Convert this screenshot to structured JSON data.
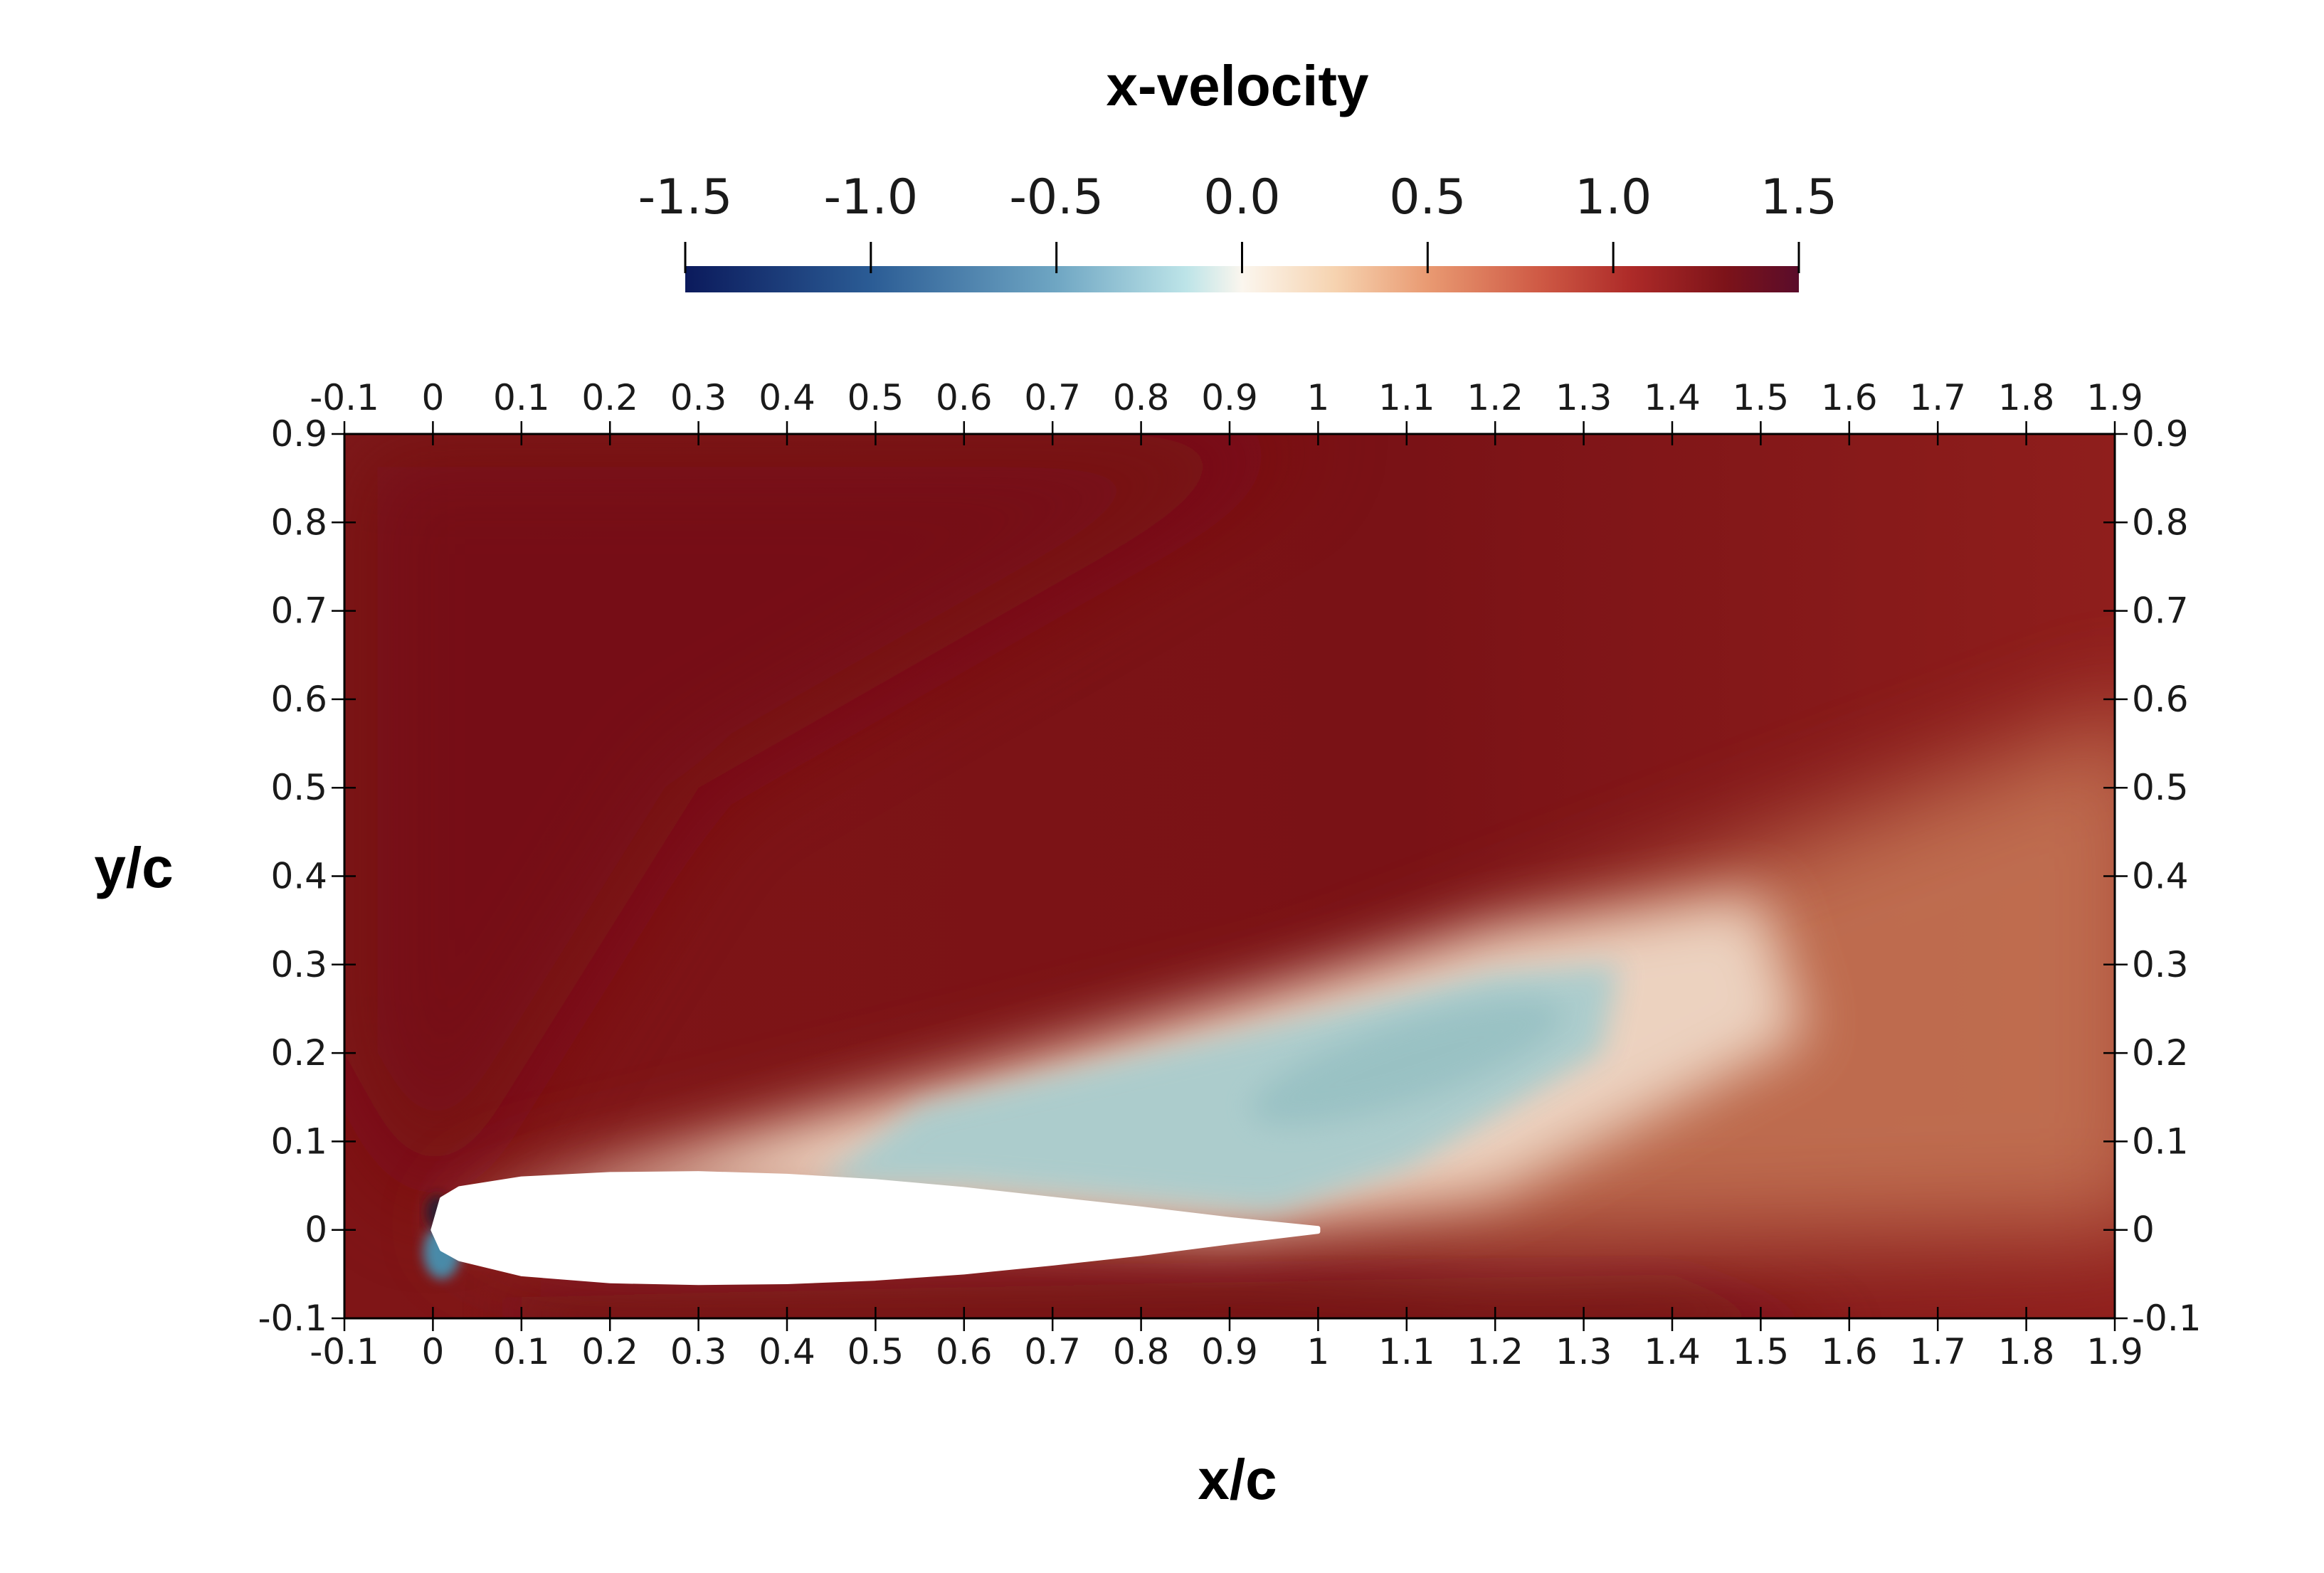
{
  "chart_data": {
    "type": "heatmap",
    "title": "x-velocity",
    "xlabel": "x/c",
    "ylabel": "y/c",
    "xlim": [
      -0.1,
      1.9
    ],
    "ylim": [
      -0.1,
      0.9
    ],
    "x_ticks": [
      {
        "value": -0.1,
        "label": "-0.1"
      },
      {
        "value": 0,
        "label": "0"
      },
      {
        "value": 0.1,
        "label": "0.1"
      },
      {
        "value": 0.2,
        "label": "0.2"
      },
      {
        "value": 0.3,
        "label": "0.3"
      },
      {
        "value": 0.4,
        "label": "0.4"
      },
      {
        "value": 0.5,
        "label": "0.5"
      },
      {
        "value": 0.6,
        "label": "0.6"
      },
      {
        "value": 0.7,
        "label": "0.7"
      },
      {
        "value": 0.8,
        "label": "0.8"
      },
      {
        "value": 0.9,
        "label": "0.9"
      },
      {
        "value": 1,
        "label": "1"
      },
      {
        "value": 1.1,
        "label": "1.1"
      },
      {
        "value": 1.2,
        "label": "1.2"
      },
      {
        "value": 1.3,
        "label": "1.3"
      },
      {
        "value": 1.4,
        "label": "1.4"
      },
      {
        "value": 1.5,
        "label": "1.5"
      },
      {
        "value": 1.6,
        "label": "1.6"
      },
      {
        "value": 1.7,
        "label": "1.7"
      },
      {
        "value": 1.8,
        "label": "1.8"
      },
      {
        "value": 1.9,
        "label": "1.9"
      }
    ],
    "y_ticks": [
      {
        "value": -0.1,
        "label": "-0.1"
      },
      {
        "value": 0,
        "label": "0"
      },
      {
        "value": 0.1,
        "label": "0.1"
      },
      {
        "value": 0.2,
        "label": "0.2"
      },
      {
        "value": 0.3,
        "label": "0.3"
      },
      {
        "value": 0.4,
        "label": "0.4"
      },
      {
        "value": 0.5,
        "label": "0.5"
      },
      {
        "value": 0.6,
        "label": "0.6"
      },
      {
        "value": 0.7,
        "label": "0.7"
      },
      {
        "value": 0.8,
        "label": "0.8"
      },
      {
        "value": 0.9,
        "label": "0.9"
      }
    ],
    "colorbar": {
      "range": [
        -1.5,
        1.5
      ],
      "ticks": [
        {
          "value": -1.5,
          "label": "-1.5"
        },
        {
          "value": -1.0,
          "label": "-1.0"
        },
        {
          "value": -0.5,
          "label": "-0.5"
        },
        {
          "value": 0.0,
          "label": "0.0"
        },
        {
          "value": 0.5,
          "label": "0.5"
        },
        {
          "value": 1.0,
          "label": "1.0"
        },
        {
          "value": 1.5,
          "label": "1.5"
        }
      ],
      "colormap": [
        {
          "value": -1.5,
          "color": "#0b1a5c"
        },
        {
          "value": -1.0,
          "color": "#2b5c95"
        },
        {
          "value": -0.5,
          "color": "#6fa6c3"
        },
        {
          "value": -0.15,
          "color": "#bde4e8"
        },
        {
          "value": 0.0,
          "color": "#fbf6ee"
        },
        {
          "value": 0.25,
          "color": "#f6d3b0"
        },
        {
          "value": 0.5,
          "color": "#e99a72"
        },
        {
          "value": 0.8,
          "color": "#cf5a45"
        },
        {
          "value": 1.05,
          "color": "#ad2a28"
        },
        {
          "value": 1.3,
          "color": "#7d1319"
        },
        {
          "value": 1.5,
          "color": "#5a0c2a"
        }
      ]
    },
    "field_colors": {
      "freestream": "#821517",
      "upper_fast": "#761015",
      "lower_fast": "#7f1518",
      "wake_outer": "#c87a58",
      "wake_shear": "#efd8c6",
      "recirculation": "#a9cccd",
      "recirculation_core": "#95bfc2",
      "leading_edge_low": "#4a8aa8",
      "leading_edge_dark": "#2a1a30",
      "airfoil": "#ffffff"
    },
    "airfoil": {
      "leading_edge": [
        0,
        0
      ],
      "trailing_edge": [
        1,
        0
      ],
      "upper": [
        [
          0,
          0
        ],
        [
          0.01,
          0.035
        ],
        [
          0.03,
          0.047
        ],
        [
          0.1,
          0.058
        ],
        [
          0.2,
          0.063
        ],
        [
          0.3,
          0.064
        ],
        [
          0.4,
          0.061
        ],
        [
          0.5,
          0.055
        ],
        [
          0.6,
          0.046
        ],
        [
          0.7,
          0.035
        ],
        [
          0.8,
          0.024
        ],
        [
          0.9,
          0.012
        ],
        [
          1,
          0.002
        ]
      ],
      "lower": [
        [
          0,
          0
        ],
        [
          0.01,
          -0.022
        ],
        [
          0.03,
          -0.033
        ],
        [
          0.1,
          -0.05
        ],
        [
          0.2,
          -0.058
        ],
        [
          0.3,
          -0.06
        ],
        [
          0.4,
          -0.059
        ],
        [
          0.5,
          -0.055
        ],
        [
          0.6,
          -0.048
        ],
        [
          0.7,
          -0.038
        ],
        [
          0.8,
          -0.027
        ],
        [
          0.9,
          -0.014
        ],
        [
          1,
          -0.002
        ]
      ]
    }
  }
}
